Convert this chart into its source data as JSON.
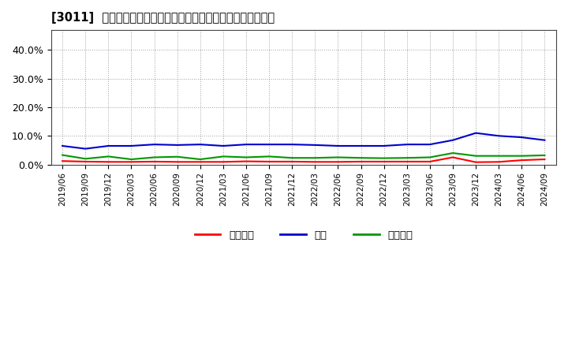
{
  "title": "[3011]  売上債権、在庫、買入債務の総資産に対する比率の推移",
  "x_labels": [
    "2019/06",
    "2019/09",
    "2019/12",
    "2020/03",
    "2020/06",
    "2020/09",
    "2020/12",
    "2021/03",
    "2021/06",
    "2021/09",
    "2021/12",
    "2022/03",
    "2022/06",
    "2022/09",
    "2022/12",
    "2023/03",
    "2023/06",
    "2023/09",
    "2023/12",
    "2024/03",
    "2024/06",
    "2024/09"
  ],
  "売上債権": [
    1.2,
    1.0,
    0.9,
    0.9,
    1.0,
    0.9,
    0.9,
    0.9,
    1.1,
    1.0,
    1.0,
    0.9,
    0.9,
    1.0,
    1.0,
    1.0,
    1.0,
    2.5,
    0.8,
    0.9,
    1.5,
    1.8
  ],
  "在庫": [
    6.5,
    5.5,
    6.5,
    6.5,
    7.0,
    6.8,
    7.0,
    6.5,
    7.0,
    7.0,
    7.0,
    6.8,
    6.5,
    6.5,
    6.5,
    7.0,
    7.0,
    8.5,
    11.0,
    10.0,
    9.5,
    8.5
  ],
  "買入債務": [
    3.3,
    2.0,
    2.8,
    1.8,
    2.5,
    2.7,
    1.8,
    2.8,
    2.5,
    2.8,
    2.3,
    2.3,
    2.5,
    2.3,
    2.2,
    2.3,
    2.5,
    4.0,
    3.0,
    3.0,
    3.0,
    3.2
  ],
  "colors": {
    "売上債権": "#ff0000",
    "在庫": "#0000cc",
    "買入債務": "#009900"
  },
  "ylim": [
    0,
    47
  ],
  "yticks": [
    0,
    10.0,
    20.0,
    30.0,
    40.0
  ],
  "ytick_labels": [
    "0.0%",
    "10.0%",
    "20.0%",
    "30.0%",
    "40.0%"
  ],
  "background_color": "#ffffff",
  "grid_color": "#888888",
  "legend_labels": [
    "売上債権",
    "在庫",
    "買入債務"
  ],
  "legend_line_labels": [
    "売上債権",
    "在庫",
    "買入債務"
  ]
}
